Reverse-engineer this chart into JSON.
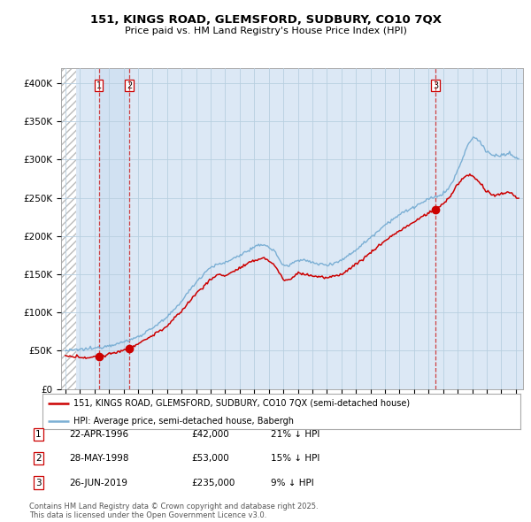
{
  "title": "151, KINGS ROAD, GLEMSFORD, SUDBURY, CO10 7QX",
  "subtitle": "Price paid vs. HM Land Registry's House Price Index (HPI)",
  "ylim": [
    0,
    420000
  ],
  "yticks": [
    0,
    50000,
    100000,
    150000,
    200000,
    250000,
    300000,
    350000,
    400000
  ],
  "ytick_labels": [
    "£0",
    "£50K",
    "£100K",
    "£150K",
    "£200K",
    "£250K",
    "£300K",
    "£350K",
    "£400K"
  ],
  "xlim_start": 1993.7,
  "xlim_end": 2025.5,
  "hatch_end": 1994.75,
  "background_color": "#dce8f5",
  "hatch_facecolor": "#ffffff",
  "grid_color": "#b8cfe0",
  "hpi_color": "#7bafd4",
  "price_color": "#cc0000",
  "sale_marker_color": "#cc0000",
  "vline_color": "#cc2222",
  "shade_color": "#c8ddf0",
  "sale_points": [
    {
      "date": 1996.3,
      "price": 42000,
      "label": "1"
    },
    {
      "date": 1998.41,
      "price": 53000,
      "label": "2"
    },
    {
      "date": 2019.48,
      "price": 235000,
      "label": "3"
    }
  ],
  "transactions": [
    {
      "label": "1",
      "date": "22-APR-1996",
      "price": "£42,000",
      "hpi_diff": "21% ↓ HPI"
    },
    {
      "label": "2",
      "date": "28-MAY-1998",
      "price": "£53,000",
      "hpi_diff": "15% ↓ HPI"
    },
    {
      "label": "3",
      "date": "26-JUN-2019",
      "price": "£235,000",
      "hpi_diff": "9% ↓ HPI"
    }
  ],
  "legend_line1": "151, KINGS ROAD, GLEMSFORD, SUDBURY, CO10 7QX (semi-detached house)",
  "legend_line2": "HPI: Average price, semi-detached house, Babergh",
  "footer": "Contains HM Land Registry data © Crown copyright and database right 2025.\nThis data is licensed under the Open Government Licence v3.0."
}
